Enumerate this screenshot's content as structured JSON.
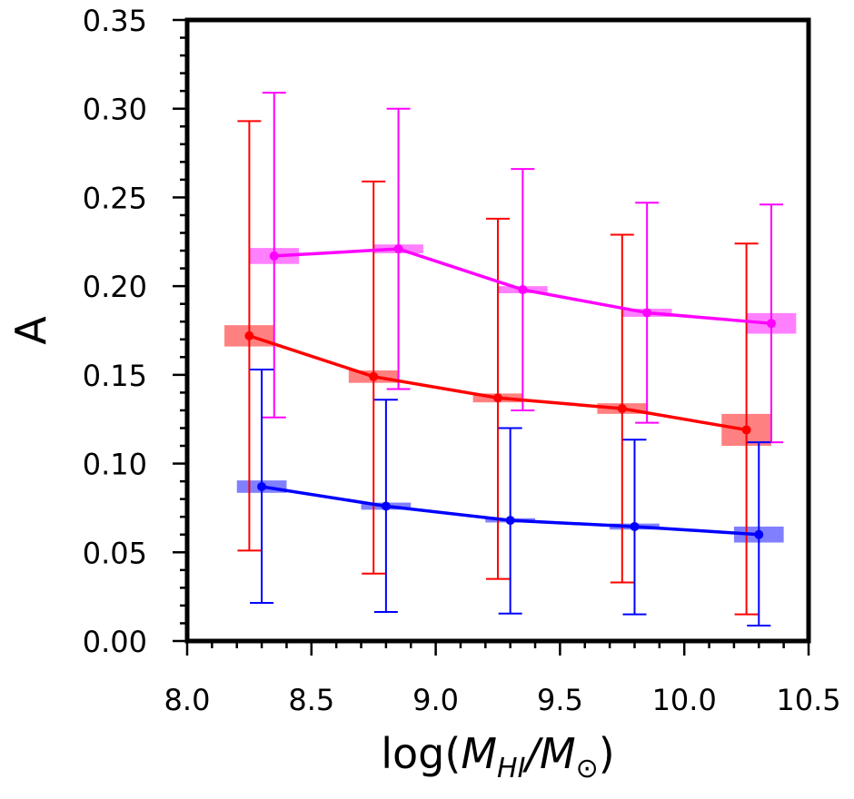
{
  "chart_data": {
    "type": "line",
    "title": "",
    "xlabel": "log(M_HI/M_⊙)",
    "xlabel_parts": {
      "prefix": "log(",
      "m1": "M",
      "sub1": "HI",
      "slash": "/",
      "m2": "M",
      "sub2": "⊙",
      "suffix": ")"
    },
    "ylabel": "A",
    "xlim": [
      8.0,
      10.5
    ],
    "ylim": [
      0.0,
      0.35
    ],
    "xticks": [
      8.0,
      8.5,
      9.0,
      9.5,
      10.0,
      10.5
    ],
    "xtick_labels": [
      "8.0",
      "8.5",
      "9.0",
      "9.5",
      "10.0",
      "10.5"
    ],
    "yticks": [
      0.0,
      0.05,
      0.1,
      0.15,
      0.2,
      0.25,
      0.3,
      0.35
    ],
    "ytick_labels": [
      "0.00",
      "0.05",
      "0.10",
      "0.15",
      "0.20",
      "0.25",
      "0.30",
      "0.35"
    ],
    "x_minor_step": 0.1,
    "y_minor_step": 0.01,
    "grid": false,
    "legend": null,
    "box_half_width_x": 0.1,
    "series": [
      {
        "name": "red",
        "color": "#ff0000",
        "box_color": "#ff8080",
        "x": [
          8.25,
          8.75,
          9.25,
          9.75,
          10.25
        ],
        "y": [
          0.172,
          0.149,
          0.137,
          0.131,
          0.119
        ],
        "err_low": [
          0.051,
          0.038,
          0.035,
          0.033,
          0.015
        ],
        "err_high": [
          0.293,
          0.259,
          0.238,
          0.229,
          0.224
        ],
        "box_half_height": [
          0.006,
          0.0035,
          0.0025,
          0.003,
          0.009
        ]
      },
      {
        "name": "magenta",
        "color": "#ff00ff",
        "box_color": "#ff80ff",
        "x": [
          8.35,
          8.85,
          9.35,
          9.85,
          10.35
        ],
        "y": [
          0.217,
          0.221,
          0.198,
          0.185,
          0.179
        ],
        "err_low": [
          0.126,
          0.142,
          0.13,
          0.123,
          0.112
        ],
        "err_high": [
          0.309,
          0.3,
          0.266,
          0.247,
          0.246
        ],
        "box_half_height": [
          0.0045,
          0.0025,
          0.002,
          0.0023,
          0.0058
        ]
      },
      {
        "name": "blue",
        "color": "#0000ff",
        "box_color": "#8080ff",
        "x": [
          8.3,
          8.8,
          9.3,
          9.8,
          10.3
        ],
        "y": [
          0.087,
          0.076,
          0.068,
          0.0645,
          0.06
        ],
        "err_low": [
          0.0215,
          0.0164,
          0.0155,
          0.015,
          0.0087
        ],
        "err_high": [
          0.153,
          0.136,
          0.12,
          0.1135,
          0.112
        ],
        "box_half_height": [
          0.0035,
          0.002,
          0.0012,
          0.0017,
          0.0045
        ]
      }
    ]
  }
}
